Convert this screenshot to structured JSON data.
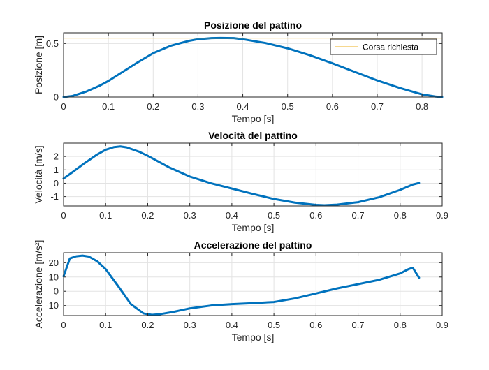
{
  "chart_data": [
    {
      "type": "line",
      "title": "Posizione del pattino",
      "xlabel": "Tempo [s]",
      "ylabel": "Posizione [m]",
      "xlim": [
        0,
        0.845
      ],
      "ylim": [
        0,
        0.6
      ],
      "xticks": [
        0,
        0.1,
        0.2,
        0.3,
        0.4,
        0.5,
        0.6,
        0.7,
        0.8
      ],
      "yticks": [
        0,
        0.5
      ],
      "grid": true,
      "legend_position": "top-right",
      "series": [
        {
          "color": "#0072BD",
          "x": [
            0,
            0.02,
            0.05,
            0.08,
            0.1,
            0.13,
            0.16,
            0.2,
            0.24,
            0.28,
            0.3,
            0.33,
            0.35,
            0.38,
            0.4,
            0.45,
            0.5,
            0.55,
            0.6,
            0.65,
            0.7,
            0.75,
            0.8,
            0.83,
            0.845
          ],
          "y": [
            0,
            0.01,
            0.05,
            0.105,
            0.15,
            0.23,
            0.31,
            0.41,
            0.48,
            0.525,
            0.54,
            0.55,
            0.552,
            0.55,
            0.54,
            0.505,
            0.455,
            0.39,
            0.315,
            0.235,
            0.155,
            0.085,
            0.025,
            0.005,
            0
          ]
        },
        {
          "name": "Corsa richiesta",
          "color": "#EDB120",
          "x": [
            0,
            0.845
          ],
          "y": [
            0.55,
            0.55
          ]
        }
      ]
    },
    {
      "type": "line",
      "title": "Velocità del pattino",
      "xlabel": "Tempo [s]",
      "ylabel": "Velocità [m/s]",
      "xlim": [
        0,
        0.9
      ],
      "ylim": [
        -1.7,
        3.0
      ],
      "xticks": [
        0,
        0.1,
        0.2,
        0.3,
        0.4,
        0.5,
        0.6,
        0.7,
        0.8,
        0.9
      ],
      "yticks": [
        -1,
        0,
        1,
        2
      ],
      "grid": true,
      "series": [
        {
          "color": "#0072BD",
          "x": [
            0,
            0.02,
            0.05,
            0.08,
            0.1,
            0.12,
            0.135,
            0.15,
            0.18,
            0.2,
            0.25,
            0.3,
            0.35,
            0.4,
            0.45,
            0.5,
            0.55,
            0.6,
            0.62,
            0.65,
            0.7,
            0.75,
            0.8,
            0.83,
            0.845
          ],
          "y": [
            0.35,
            0.8,
            1.5,
            2.15,
            2.5,
            2.7,
            2.75,
            2.68,
            2.35,
            2.05,
            1.2,
            0.5,
            0.0,
            -0.4,
            -0.8,
            -1.18,
            -1.45,
            -1.62,
            -1.65,
            -1.6,
            -1.42,
            -1.05,
            -0.5,
            -0.1,
            0.02
          ]
        }
      ]
    },
    {
      "type": "line",
      "title": "Accelerazione del pattino",
      "xlabel": "Tempo [s]",
      "ylabel": "Accelerazione [m/s²]",
      "xlim": [
        0,
        0.9
      ],
      "ylim": [
        -17,
        27
      ],
      "xticks": [
        0,
        0.1,
        0.2,
        0.3,
        0.4,
        0.5,
        0.6,
        0.7,
        0.8,
        0.9
      ],
      "yticks": [
        -10,
        0,
        10,
        20
      ],
      "grid": true,
      "series": [
        {
          "color": "#0072BD",
          "x": [
            0,
            0.015,
            0.03,
            0.045,
            0.06,
            0.08,
            0.1,
            0.13,
            0.16,
            0.19,
            0.21,
            0.23,
            0.26,
            0.3,
            0.35,
            0.4,
            0.45,
            0.5,
            0.55,
            0.6,
            0.65,
            0.7,
            0.75,
            0.8,
            0.82,
            0.83,
            0.845
          ],
          "y": [
            10.5,
            23,
            24.5,
            25,
            24.3,
            21,
            15.5,
            3.5,
            -9,
            -15.5,
            -16.5,
            -16,
            -14.5,
            -12,
            -10,
            -9,
            -8.3,
            -7.5,
            -5,
            -1.5,
            2,
            5,
            8,
            12.5,
            15.5,
            16.5,
            9.5
          ]
        }
      ]
    }
  ]
}
